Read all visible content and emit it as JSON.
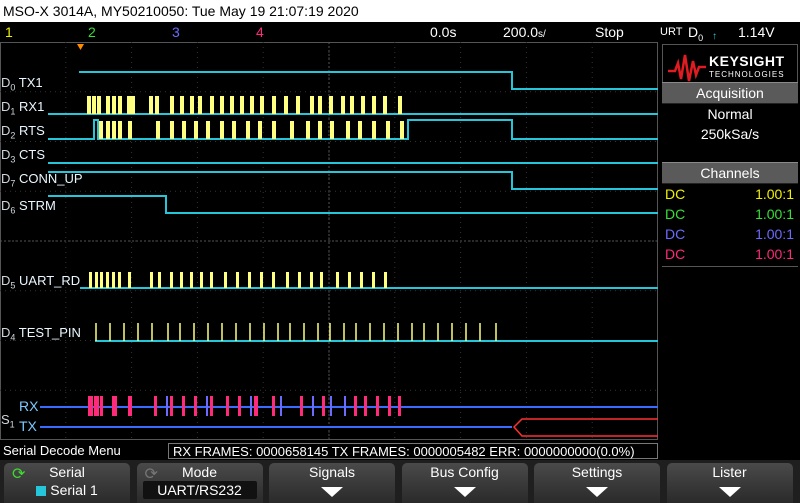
{
  "title": "MSO-X 3014A, MY50210050: Tue May 19 21:07:19 2020",
  "status": {
    "ch1": "1",
    "ch2": "2",
    "ch3": "3",
    "ch4": "4",
    "delay": "0.0s",
    "timebase": "200.0",
    "timebase_unit": "s/",
    "run_state": "Stop",
    "trigger_mode": "URT",
    "trigger_source": "D",
    "trigger_source_sub": "0",
    "trigger_level": "1.14V"
  },
  "colors": {
    "ch1": "#f2f200",
    "ch2": "#37e037",
    "ch3": "#6b6bff",
    "ch4": "#ff2a7a",
    "digital": "#26c6da",
    "digital_high": "#37d59a",
    "bus_fill": "#ffff80",
    "decode_rx": "#ff2a7a",
    "decode_tx": "#ff3030"
  },
  "digital_channels": [
    {
      "id": "D",
      "sub": "0",
      "name": "TX1"
    },
    {
      "id": "D",
      "sub": "1",
      "name": "RX1"
    },
    {
      "id": "D",
      "sub": "2",
      "name": "RTS"
    },
    {
      "id": "D",
      "sub": "3",
      "name": "CTS"
    },
    {
      "id": "D",
      "sub": "7",
      "name": "CONN_UP"
    },
    {
      "id": "D",
      "sub": "6",
      "name": "STRM"
    },
    {
      "id": "D",
      "sub": "5",
      "name": "UART_RD"
    },
    {
      "id": "D",
      "sub": "4",
      "name": "TEST_PIN"
    }
  ],
  "serial": {
    "id": "S",
    "sub": "1",
    "rx": "RX",
    "tx": "TX"
  },
  "logo": {
    "brand": "KEYSIGHT",
    "sub": "TECHNOLOGIES"
  },
  "acquisition": {
    "title": "Acquisition",
    "mode": "Normal",
    "rate": "250kSa/s"
  },
  "channels": {
    "title": "Channels",
    "rows": [
      {
        "coupling": "DC",
        "ratio": "1.00:1",
        "color": "#f2f200"
      },
      {
        "coupling": "DC",
        "ratio": "1.00:1",
        "color": "#37e037"
      },
      {
        "coupling": "DC",
        "ratio": "1.00:1",
        "color": "#6b6bff"
      },
      {
        "coupling": "DC",
        "ratio": "1.00:1",
        "color": "#ff2a7a"
      }
    ]
  },
  "decode_bar": {
    "menu_title": "Serial Decode Menu",
    "summary": "RX FRAMES: 0000658145  TX FRAMES: 0000005482  ERR: 0000000000(0.0%)"
  },
  "softkeys": [
    {
      "title": "Serial",
      "sub": "Serial 1",
      "icon": "refresh-icon"
    },
    {
      "title": "Mode",
      "sub": "UART/RS232",
      "icon": "refresh-icon"
    },
    {
      "title": "Signals",
      "sub": "",
      "icon": "down-arrow-icon"
    },
    {
      "title": "Bus Config",
      "sub": "",
      "icon": "down-arrow-icon"
    },
    {
      "title": "Settings",
      "sub": "",
      "icon": "down-arrow-icon"
    },
    {
      "title": "Lister",
      "sub": "",
      "icon": "down-arrow-icon"
    }
  ]
}
